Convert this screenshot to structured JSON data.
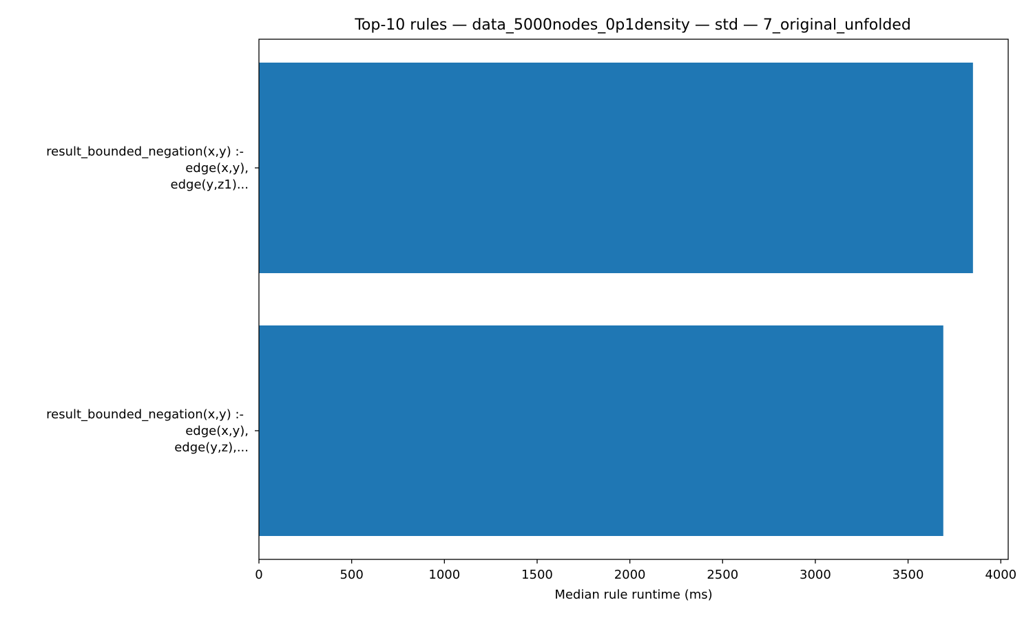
{
  "colors": {
    "bar": "#1f77b4",
    "axis": "#000000",
    "background": "#ffffff"
  },
  "chart_data": {
    "type": "bar",
    "orientation": "horizontal",
    "title": "Top-10 rules — data_5000nodes_0p1density — std — 7_original_unfolded",
    "xlabel": "Median rule runtime (ms)",
    "ylabel": "",
    "xlim": [
      0,
      4040
    ],
    "xticks": [
      0,
      500,
      1000,
      1500,
      2000,
      2500,
      3000,
      3500,
      4000
    ],
    "categories": [
      [
        "result_bounded_negation(x,y) :-",
        "edge(x,y),",
        "edge(y,z1)..."
      ],
      [
        "result_bounded_negation(x,y) :-",
        "edge(x,y),",
        "edge(y,z),..."
      ]
    ],
    "values": [
      3850,
      3690
    ],
    "grid": false,
    "legend": "none"
  }
}
